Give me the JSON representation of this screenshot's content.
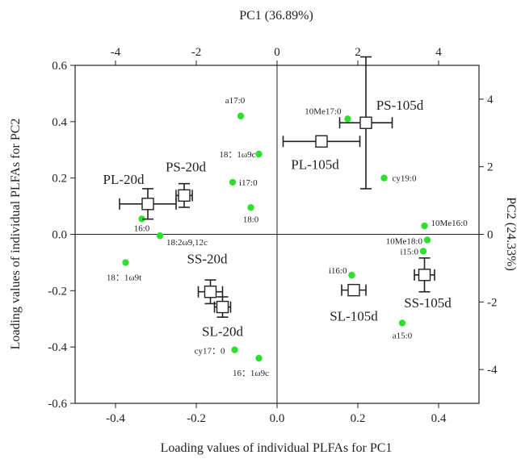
{
  "chart_data": {
    "type": "scatter",
    "axes": {
      "bottom": {
        "label": "Loading values of individual PLFAs for PC1",
        "range": [
          -0.5,
          0.5
        ],
        "ticks": [
          "-0.4",
          "-0.2",
          "0.0",
          "0.2",
          "0.4"
        ],
        "tick_values": [
          -0.4,
          -0.2,
          0.0,
          0.2,
          0.4
        ]
      },
      "left": {
        "label": "Loading values of individual PLFAs for PC2",
        "range": [
          -0.6,
          0.6
        ],
        "ticks": [
          "-0.6",
          "-0.4",
          "-0.2",
          "0.0",
          "0.2",
          "0.4",
          "0.6"
        ],
        "tick_values": [
          -0.6,
          -0.4,
          -0.2,
          0.0,
          0.2,
          0.4,
          0.6
        ]
      },
      "top": {
        "label": "PC1 (36.89%)",
        "range": [
          -5,
          5
        ],
        "ticks": [
          "-4",
          "-2",
          "0",
          "2",
          "4"
        ],
        "tick_values": [
          -4,
          -2,
          0,
          2,
          4
        ]
      },
      "right": {
        "label": "PC2 (24.33%)",
        "range": [
          -5,
          5
        ],
        "ticks": [
          "4",
          "2",
          "0",
          "-2",
          "-4"
        ],
        "tick_values": [
          4,
          2,
          0,
          -2,
          -4
        ]
      }
    },
    "plfa_loadings": [
      {
        "label": "a17:0",
        "x": -0.09,
        "y": 0.42
      },
      {
        "label": "18：1ω9c",
        "x": -0.045,
        "y": 0.285
      },
      {
        "label": "i17:0",
        "x": -0.11,
        "y": 0.185
      },
      {
        "label": "18:0",
        "x": -0.065,
        "y": 0.095
      },
      {
        "label": "16:0",
        "x": -0.335,
        "y": 0.055
      },
      {
        "label": "18:2ω9,12c",
        "x": -0.29,
        "y": -0.005
      },
      {
        "label": "18：1ω9t",
        "x": -0.375,
        "y": -0.1
      },
      {
        "label": "cy17：0",
        "x": -0.105,
        "y": -0.41
      },
      {
        "label": "16：1ω9c",
        "x": -0.045,
        "y": -0.44
      },
      {
        "label": "10Me17:0",
        "x": 0.175,
        "y": 0.41
      },
      {
        "label": "cy19:0",
        "x": 0.265,
        "y": 0.2
      },
      {
        "label": "10Me16:0",
        "x": 0.365,
        "y": 0.03
      },
      {
        "label": "10Me18:0",
        "x": 0.372,
        "y": -0.02
      },
      {
        "label": "i15:0",
        "x": 0.362,
        "y": -0.06
      },
      {
        "label": "i16:0",
        "x": 0.185,
        "y": -0.145
      },
      {
        "label": "a15:0",
        "x": 0.31,
        "y": -0.315
      }
    ],
    "sample_scores": [
      {
        "label": "PL-20d",
        "x": -3.2,
        "y": 0.9,
        "x_err": 0.7,
        "y_err": 0.45
      },
      {
        "label": "PS-20d",
        "x": -2.3,
        "y": 1.15,
        "x_err": 0.2,
        "y_err": 0.35
      },
      {
        "label": "SS-20d",
        "x": -1.65,
        "y": -1.7,
        "x_err": 0.3,
        "y_err": 0.35
      },
      {
        "label": "SL-20d",
        "x": -1.35,
        "y": -2.15,
        "x_err": 0.2,
        "y_err": 0.3
      },
      {
        "label": "PL-105d",
        "x": 1.1,
        "y": 2.75,
        "x_err": 0.95,
        "y_err": 0.0
      },
      {
        "label": "PS-105d",
        "x": 2.2,
        "y": 3.3,
        "x_err": 0.65,
        "y_err": 1.95
      },
      {
        "label": "SL-105d",
        "x": 1.9,
        "y": -1.65,
        "x_err": 0.3,
        "y_err": 0.0
      },
      {
        "label": "SS-105d",
        "x": 3.65,
        "y": -1.2,
        "x_err": 0.25,
        "y_err": 0.5
      }
    ],
    "point_color": "#2ee02e",
    "grid": false
  }
}
